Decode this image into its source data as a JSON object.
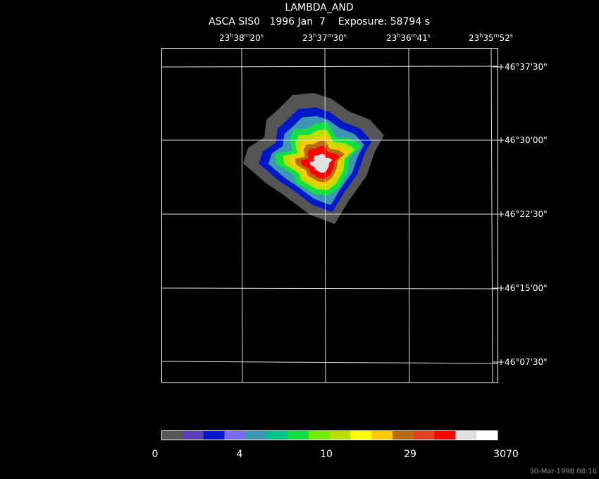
{
  "header": {
    "title": "LAMBDA_AND",
    "subtitle": "ASCA SIS0   1996 Jan  7    Exposure: 58794 s"
  },
  "ra_labels": [
    [
      "23",
      "h",
      "38",
      "m",
      "20",
      "s"
    ],
    [
      "23",
      "h",
      "37",
      "m",
      "30",
      "s"
    ],
    [
      "23",
      "h",
      "36",
      "m",
      "41",
      "s"
    ],
    [
      "23",
      "h",
      "35",
      "m",
      "52",
      "s"
    ]
  ],
  "dec_labels": [
    "+46°37'30\"",
    "+46°30'00\"",
    "+46°22'30\"",
    "+46°15'00\"",
    "+46°07'30\""
  ],
  "colorbar": {
    "colors": [
      "#555555",
      "#5a3cb4",
      "#0018c8",
      "#7a6cf0",
      "#3c96b4",
      "#00c08c",
      "#10e040",
      "#70ee00",
      "#b8e000",
      "#ffff00",
      "#ffc800",
      "#b86a10",
      "#e04024",
      "#ff0000",
      "#e0e0e0",
      "#ffffff"
    ],
    "labels": [
      "0",
      "4",
      "10",
      "29",
      "3070"
    ]
  },
  "footer": "30-Mar-1998 08:16"
}
